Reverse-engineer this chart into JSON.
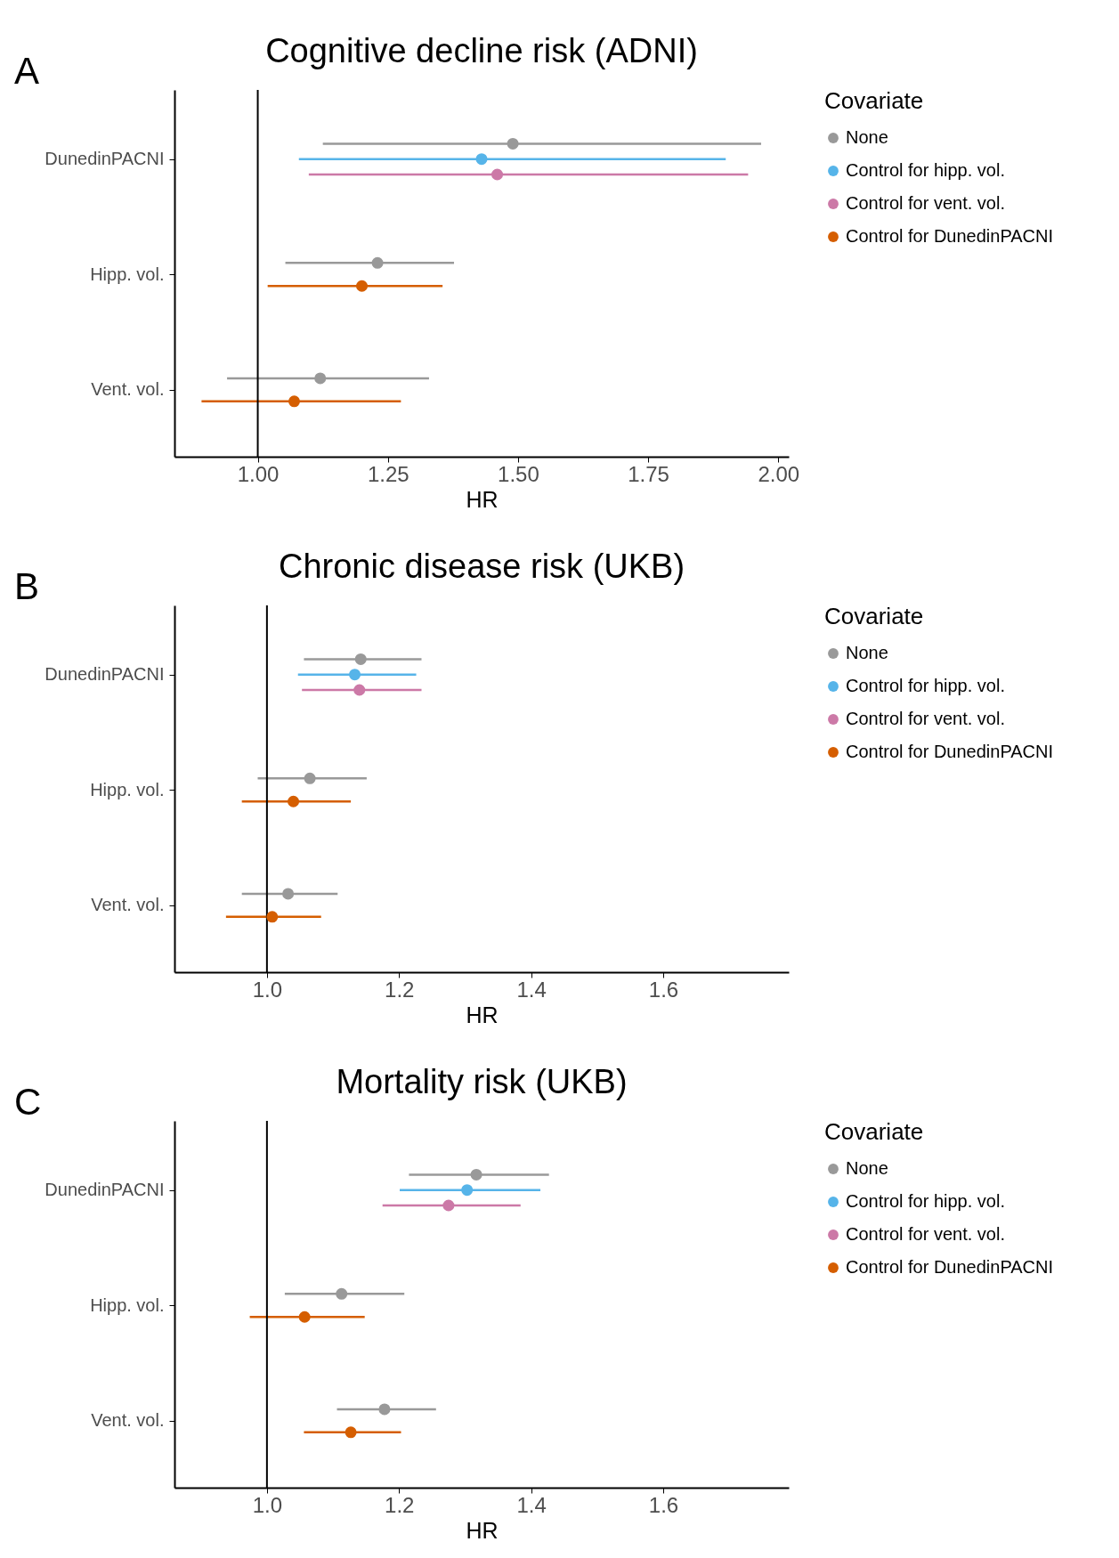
{
  "chart_data": [
    {
      "type": "scatter",
      "orientation": "horizontal",
      "title": "Cognitive decline risk (ADNI)",
      "xlabel": "HR",
      "legend_title": "Covariate",
      "legend": "right",
      "marker": "circle",
      "annotations": [
        "A"
      ],
      "categories": [
        "DunedinPACNI",
        "Hipp. vol.",
        "Vent. vol."
      ],
      "xlim": [
        0.84,
        2.02
      ],
      "xticks": [
        {
          "value": 1,
          "label": "1.00"
        },
        {
          "value": 1.25,
          "label": "1.25"
        },
        {
          "value": 1.5,
          "label": "1.50"
        },
        {
          "value": 1.75,
          "label": "1.75"
        },
        {
          "value": 2,
          "label": "2.00"
        }
      ],
      "ref_lines": [
        {
          "axis": "x",
          "value": 1,
          "color": "#000000"
        }
      ],
      "series": [
        {
          "name": "None",
          "color": "#999999",
          "values": [
            1.49,
            1.23,
            1.12
          ],
          "errors": [
            [
              1.125,
              1.967
            ],
            [
              1.053,
              1.377
            ],
            [
              0.941,
              1.329
            ]
          ]
        },
        {
          "name": "Control for hipp. vol.",
          "color": "#56b4e9",
          "values": [
            1.43,
            null,
            null
          ],
          "errors": [
            [
              1.079,
              1.899
            ],
            null,
            null
          ]
        },
        {
          "name": "Control for vent. vol.",
          "color": "#cc79a7",
          "values": [
            1.46,
            null,
            null
          ],
          "errors": [
            [
              1.098,
              1.942
            ],
            null,
            null
          ]
        },
        {
          "name": "Control for DunedinPACNI",
          "color": "#d55e00",
          "values": [
            null,
            1.2,
            1.07
          ],
          "errors": [
            null,
            [
              1.019,
              1.355
            ],
            [
              0.892,
              1.275
            ]
          ]
        }
      ]
    },
    {
      "type": "scatter",
      "orientation": "horizontal",
      "title": "Chronic disease risk (UKB)",
      "xlabel": "HR",
      "legend_title": "Covariate",
      "legend": "right",
      "marker": "circle",
      "annotations": [
        "B"
      ],
      "categories": [
        "DunedinPACNI",
        "Hipp. vol.",
        "Vent. vol."
      ],
      "xlim": [
        0.86,
        1.79
      ],
      "xticks": [
        {
          "value": 1,
          "label": "1.0"
        },
        {
          "value": 1.2,
          "label": "1.2"
        },
        {
          "value": 1.4,
          "label": "1.4"
        },
        {
          "value": 1.6,
          "label": "1.6"
        }
      ],
      "ref_lines": [
        {
          "axis": "x",
          "value": 1,
          "color": "#000000"
        }
      ],
      "series": [
        {
          "name": "None",
          "color": "#999999",
          "values": [
            1.142,
            1.065,
            1.032
          ],
          "errors": [
            [
              1.056,
              1.234
            ],
            [
              0.986,
              1.151
            ],
            [
              0.962,
              1.107
            ]
          ]
        },
        {
          "name": "Control for hipp. vol.",
          "color": "#56b4e9",
          "values": [
            1.133,
            null,
            null
          ],
          "errors": [
            [
              1.047,
              1.226
            ],
            null,
            null
          ]
        },
        {
          "name": "Control for vent. vol.",
          "color": "#cc79a7",
          "values": [
            1.14,
            null,
            null
          ],
          "errors": [
            [
              1.053,
              1.234
            ],
            null,
            null
          ]
        },
        {
          "name": "Control for DunedinPACNI",
          "color": "#d55e00",
          "values": [
            null,
            1.04,
            1.008
          ],
          "errors": [
            null,
            [
              0.962,
              1.127
            ],
            [
              0.938,
              1.082
            ]
          ]
        }
      ]
    },
    {
      "type": "scatter",
      "orientation": "horizontal",
      "title": "Mortality risk (UKB)",
      "xlabel": "HR",
      "legend_title": "Covariate",
      "legend": "right",
      "marker": "circle",
      "annotations": [
        "C"
      ],
      "categories": [
        "DunedinPACNI",
        "Hipp. vol.",
        "Vent. vol."
      ],
      "xlim": [
        0.86,
        1.79
      ],
      "xticks": [
        {
          "value": 1,
          "label": "1.0"
        },
        {
          "value": 1.2,
          "label": "1.2"
        },
        {
          "value": 1.4,
          "label": "1.4"
        },
        {
          "value": 1.6,
          "label": "1.6"
        }
      ],
      "ref_lines": [
        {
          "axis": "x",
          "value": 1,
          "color": "#000000"
        }
      ],
      "series": [
        {
          "name": "None",
          "color": "#999999",
          "values": [
            1.317,
            1.113,
            1.178
          ],
          "errors": [
            [
              1.215,
              1.427
            ],
            [
              1.027,
              1.208
            ],
            [
              1.106,
              1.256
            ]
          ]
        },
        {
          "name": "Control for hipp. vol.",
          "color": "#56b4e9",
          "values": [
            1.303,
            null,
            null
          ],
          "errors": [
            [
              1.201,
              1.414
            ],
            null,
            null
          ]
        },
        {
          "name": "Control for vent. vol.",
          "color": "#cc79a7",
          "values": [
            1.275,
            null,
            null
          ],
          "errors": [
            [
              1.175,
              1.384
            ],
            null,
            null
          ]
        },
        {
          "name": "Control for DunedinPACNI",
          "color": "#d55e00",
          "values": [
            null,
            1.057,
            1.127
          ],
          "errors": [
            null,
            [
              0.974,
              1.148
            ],
            [
              1.056,
              1.203
            ]
          ]
        }
      ]
    }
  ]
}
